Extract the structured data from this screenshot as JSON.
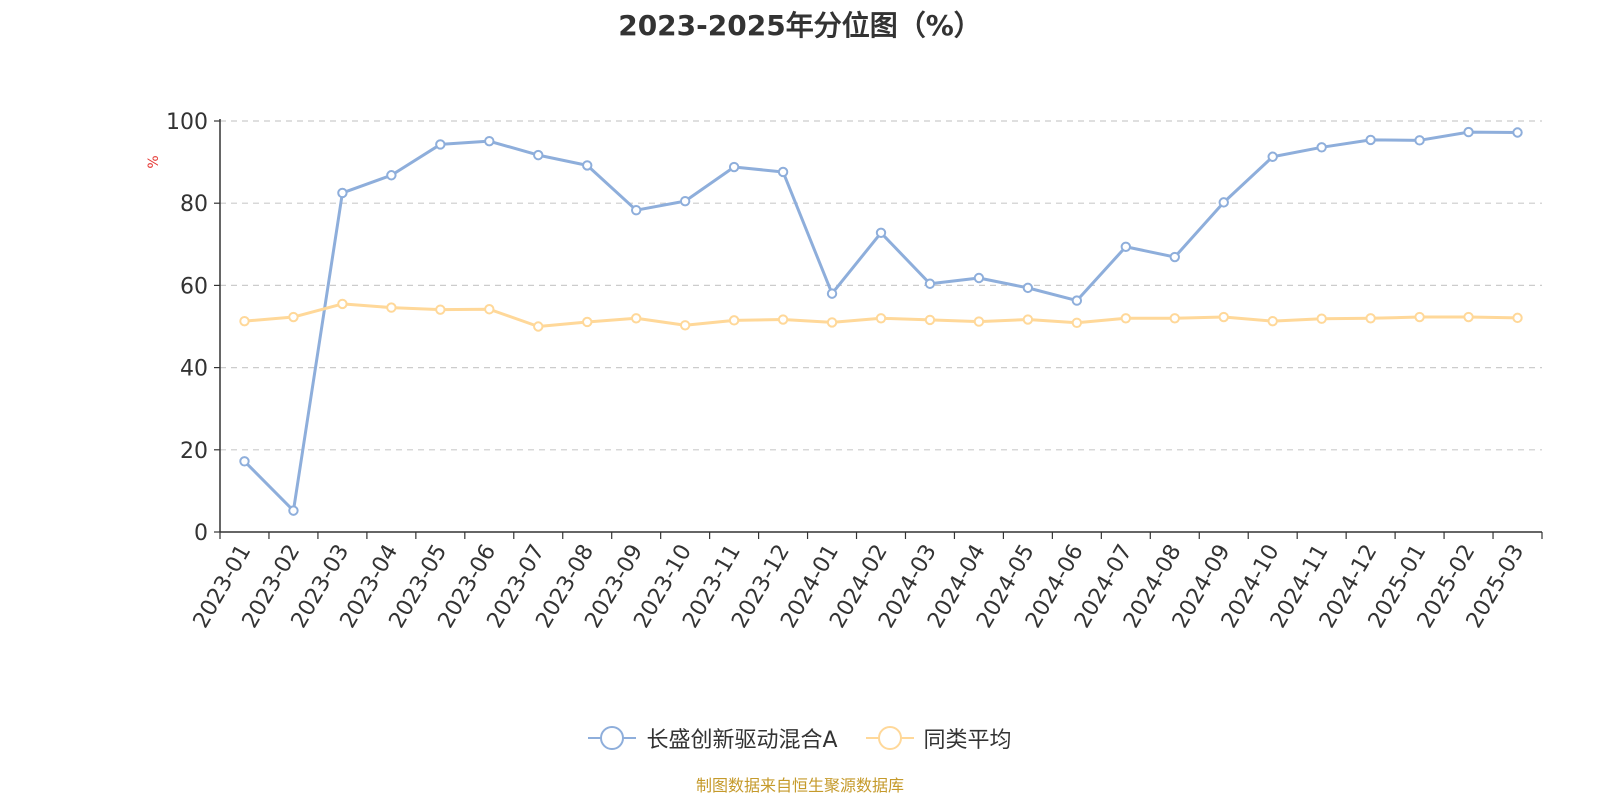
{
  "chart_data": {
    "type": "line",
    "title": "2023-2025年分位图（%）",
    "ylabel": "%",
    "xlabel": "",
    "ylim": [
      0,
      100
    ],
    "yticks": [
      0,
      20,
      40,
      60,
      80,
      100
    ],
    "grid": true,
    "legend_position": "bottom",
    "categories": [
      "2023-01",
      "2023-02",
      "2023-03",
      "2023-04",
      "2023-05",
      "2023-06",
      "2023-07",
      "2023-08",
      "2023-09",
      "2023-10",
      "2023-11",
      "2023-12",
      "2024-01",
      "2024-02",
      "2024-03",
      "2024-04",
      "2024-05",
      "2024-06",
      "2024-07",
      "2024-08",
      "2024-09",
      "2024-10",
      "2024-11",
      "2024-12",
      "2025-01",
      "2025-02",
      "2025-03"
    ],
    "series": [
      {
        "name": "长盛创新驱动混合A",
        "color": "#8eaedb",
        "values": [
          17.2,
          5.2,
          82.5,
          86.8,
          94.3,
          95.1,
          91.7,
          89.2,
          78.3,
          80.5,
          88.8,
          87.6,
          58.0,
          72.8,
          60.4,
          61.8,
          59.4,
          56.3,
          69.4,
          66.9,
          80.2,
          91.3,
          93.6,
          95.4,
          95.3,
          97.3,
          97.2
        ]
      },
      {
        "name": "同类平均",
        "color": "#ffd899",
        "values": [
          51.3,
          52.3,
          55.5,
          54.6,
          54.1,
          54.2,
          50.0,
          51.1,
          52.0,
          50.3,
          51.5,
          51.7,
          51.0,
          52.0,
          51.6,
          51.2,
          51.7,
          50.9,
          52.0,
          52.0,
          52.3,
          51.3,
          51.9,
          52.0,
          52.3,
          52.3,
          52.1
        ]
      }
    ]
  },
  "source_note": "制图数据来自恒生聚源数据库"
}
